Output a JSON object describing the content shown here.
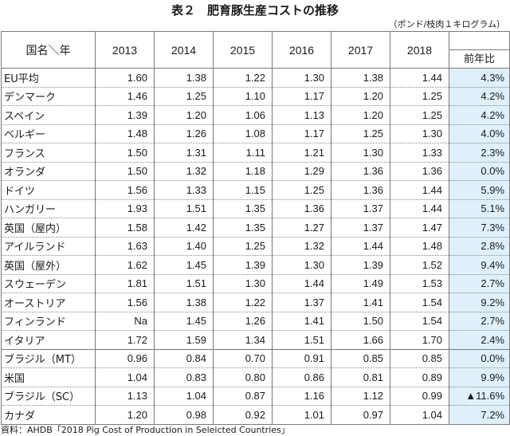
{
  "title": "表２　肥育豚生産コストの推移",
  "unit": "（ポンド/枝肉１キログラム）",
  "header": {
    "corner": "国名＼年",
    "years": [
      "2013",
      "2014",
      "2015",
      "2016",
      "2017",
      "2018"
    ],
    "yoy_label": "前年比"
  },
  "rows": [
    {
      "country": "EU平均",
      "values": [
        "1.60",
        "1.38",
        "1.22",
        "1.30",
        "1.38",
        "1.44"
      ],
      "yoy": "4.3%"
    },
    {
      "country": "デンマーク",
      "values": [
        "1.46",
        "1.25",
        "1.10",
        "1.17",
        "1.20",
        "1.25"
      ],
      "yoy": "4.2%"
    },
    {
      "country": "スペイン",
      "values": [
        "1.39",
        "1.20",
        "1.06",
        "1.13",
        "1.20",
        "1.25"
      ],
      "yoy": "4.2%"
    },
    {
      "country": "ベルギー",
      "values": [
        "1.48",
        "1.26",
        "1.08",
        "1.17",
        "1.25",
        "1.30"
      ],
      "yoy": "4.0%"
    },
    {
      "country": "フランス",
      "values": [
        "1.50",
        "1.31",
        "1.11",
        "1.21",
        "1.30",
        "1.33"
      ],
      "yoy": "2.3%"
    },
    {
      "country": "オランダ",
      "values": [
        "1.50",
        "1.32",
        "1.18",
        "1.29",
        "1.36",
        "1.36"
      ],
      "yoy": "0.0%"
    },
    {
      "country": "ドイツ",
      "values": [
        "1.56",
        "1.33",
        "1.15",
        "1.25",
        "1.36",
        "1.44"
      ],
      "yoy": "5.9%"
    },
    {
      "country": "ハンガリー",
      "values": [
        "1.93",
        "1.51",
        "1.35",
        "1.36",
        "1.37",
        "1.44"
      ],
      "yoy": "5.1%"
    },
    {
      "country": "英国（屋内）",
      "values": [
        "1.58",
        "1.42",
        "1.35",
        "1.27",
        "1.37",
        "1.47"
      ],
      "yoy": "7.3%"
    },
    {
      "country": "アイルランド",
      "values": [
        "1.63",
        "1.40",
        "1.25",
        "1.32",
        "1.44",
        "1.48"
      ],
      "yoy": "2.8%"
    },
    {
      "country": "英国（屋外）",
      "values": [
        "1.62",
        "1.45",
        "1.39",
        "1.30",
        "1.39",
        "1.52"
      ],
      "yoy": "9.4%"
    },
    {
      "country": "スウェーデン",
      "values": [
        "1.81",
        "1.51",
        "1.30",
        "1.44",
        "1.49",
        "1.53"
      ],
      "yoy": "2.7%"
    },
    {
      "country": "オーストリア",
      "values": [
        "1.56",
        "1.38",
        "1.22",
        "1.37",
        "1.41",
        "1.54"
      ],
      "yoy": "9.2%"
    },
    {
      "country": "フィンランド",
      "values": [
        "Na",
        "1.45",
        "1.26",
        "1.41",
        "1.50",
        "1.54"
      ],
      "yoy": "2.7%"
    },
    {
      "country": "イタリア",
      "values": [
        "1.72",
        "1.59",
        "1.34",
        "1.51",
        "1.66",
        "1.70"
      ],
      "yoy": "2.4%"
    },
    {
      "country": "ブラジル（MT）",
      "values": [
        "0.96",
        "0.84",
        "0.70",
        "0.91",
        "0.85",
        "0.85"
      ],
      "yoy": "0.0%"
    },
    {
      "country": "米国",
      "values": [
        "1.04",
        "0.83",
        "0.80",
        "0.86",
        "0.81",
        "0.89"
      ],
      "yoy": "9.9%"
    },
    {
      "country": "ブラジル（SC）",
      "values": [
        "1.13",
        "1.04",
        "0.87",
        "1.16",
        "1.12",
        "0.99"
      ],
      "yoy": "▲11.6%"
    },
    {
      "country": "カナダ",
      "values": [
        "1.20",
        "0.98",
        "0.92",
        "1.01",
        "0.97",
        "1.04"
      ],
      "yoy": "7.2%"
    }
  ],
  "source": "資料：AHDB「2018 Pig Cost of Production in Seleicted Countries」"
}
